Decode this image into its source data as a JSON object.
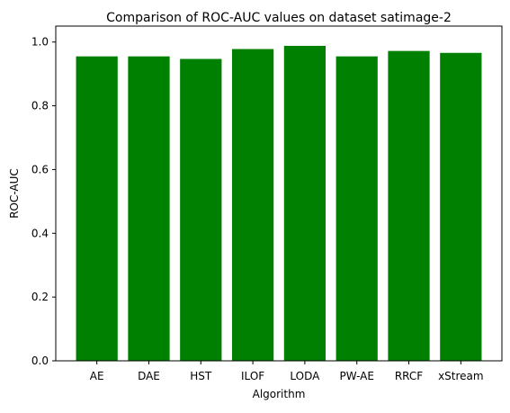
{
  "chart_data": {
    "type": "bar",
    "title": "Comparison of ROC-AUC values on dataset satimage-2",
    "xlabel": "Algorithm",
    "ylabel": "ROC-AUC",
    "categories": [
      "AE",
      "DAE",
      "HST",
      "ILOF",
      "LODA",
      "PW-AE",
      "RRCF",
      "xStream"
    ],
    "values": [
      0.955,
      0.955,
      0.947,
      0.978,
      0.988,
      0.955,
      0.972,
      0.966
    ],
    "ylim": [
      0,
      1.05
    ],
    "yticks": [
      0.0,
      0.2,
      0.4,
      0.6,
      0.8,
      1.0
    ],
    "ytick_labels": [
      "0.0",
      "0.2",
      "0.4",
      "0.6",
      "0.8",
      "1.0"
    ],
    "bar_color": "#008000",
    "grid": false,
    "legend": "none"
  }
}
